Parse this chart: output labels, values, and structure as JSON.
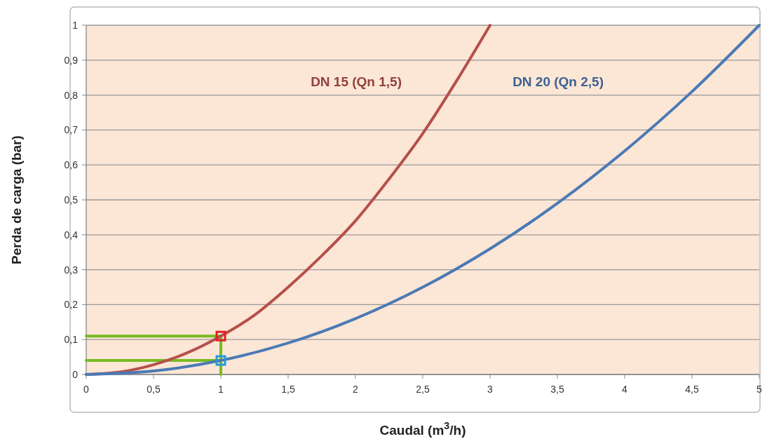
{
  "chart_data": {
    "type": "line",
    "xlabel": "Caudal (m$^{3}$/h)",
    "ylabel": "Perda de carga (bar)",
    "xlim": [
      0,
      5
    ],
    "ylim": [
      0,
      1
    ],
    "xticks": [
      0,
      {
        "value": 0.5,
        "label": "0,5"
      },
      1,
      {
        "value": 1.5,
        "label": "1,5"
      },
      2,
      {
        "value": 2.5,
        "label": "2,5"
      },
      3,
      {
        "value": 3.5,
        "label": "3,5"
      },
      4,
      {
        "value": 4.5,
        "label": "4,5"
      },
      5
    ],
    "yticks": [
      0,
      {
        "value": 0.1,
        "label": "0,1"
      },
      {
        "value": 0.2,
        "label": "0,2"
      },
      {
        "value": 0.3,
        "label": "0,3"
      },
      {
        "value": 0.4,
        "label": "0,4"
      },
      {
        "value": 0.5,
        "label": "0,5"
      },
      {
        "value": 0.6,
        "label": "0,6"
      },
      {
        "value": 0.7,
        "label": "0,7"
      },
      {
        "value": 0.8,
        "label": "0,8"
      },
      {
        "value": 0.9,
        "label": "0,9"
      },
      1
    ],
    "grid": "y",
    "marker": "none",
    "series": [
      {
        "color": "#77bb22",
        "x": [
          0,
          1,
          1
        ],
        "values": [
          0.11,
          0.11,
          0
        ]
      },
      {
        "color": "#77bb22",
        "x": [
          0,
          1
        ],
        "values": [
          0.04,
          0.04
        ]
      },
      {
        "name": "DN 15 (Qn 1,5)",
        "color": "#b5504a",
        "x": [
          0,
          0.25,
          0.5,
          0.75,
          1,
          1.25,
          1.5,
          1.75,
          2,
          2.25,
          2.5,
          2.75,
          3
        ],
        "values": [
          0,
          0.007,
          0.028,
          0.062,
          0.11,
          0.17,
          0.25,
          0.34,
          0.44,
          0.56,
          0.69,
          0.84,
          1
        ]
      },
      {
        "name": "DN 20 (Qn 2,5)",
        "color": "#4a7ab5",
        "x": [
          0,
          0.5,
          1,
          1.5,
          2,
          2.5,
          3,
          3.5,
          4,
          4.5,
          5
        ],
        "values": [
          0,
          0.01,
          0.04,
          0.09,
          0.16,
          0.25,
          0.36,
          0.49,
          0.64,
          0.81,
          1
        ]
      },
      {
        "type": "scatter",
        "marker": "square",
        "color": "#e02020",
        "x": [
          1
        ],
        "values": [
          0.11
        ]
      },
      {
        "type": "scatter",
        "marker": "square",
        "color": "#1e9be0",
        "x": [
          1
        ],
        "values": [
          0.04
        ]
      }
    ]
  }
}
